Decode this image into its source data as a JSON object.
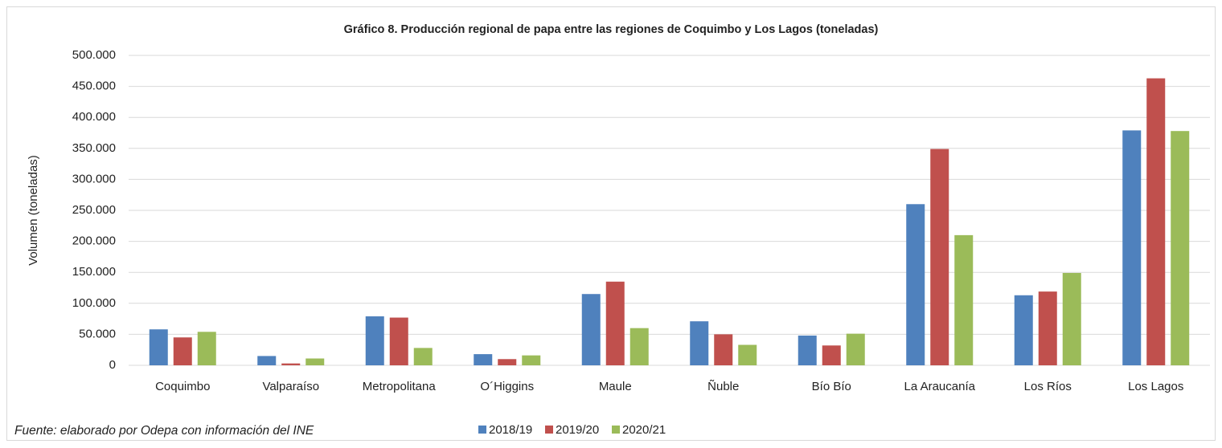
{
  "chart_data": {
    "type": "bar",
    "title": "Gráfico 8. Producción regional de papa entre las regiones de Coquimbo y Los Lagos (toneladas)",
    "y_label": "Volumen (toneladas)",
    "source": "Fuente: elaborado por Odepa con información del INE",
    "categories": [
      "Coquimbo",
      "Valparaíso",
      "Metropolitana",
      "O´Higgins",
      "Maule",
      "Ñuble",
      "Bío Bío",
      "La Araucanía",
      "Los Ríos",
      "Los Lagos"
    ],
    "series": [
      {
        "name": "2018/19",
        "color": "#4f81bd",
        "values": [
          58000,
          15000,
          79000,
          18000,
          115000,
          71000,
          48000,
          260000,
          113000,
          379000
        ]
      },
      {
        "name": "2019/20",
        "color": "#c0504d",
        "values": [
          45000,
          3000,
          77000,
          10000,
          135000,
          50000,
          32000,
          349000,
          119000,
          463000
        ]
      },
      {
        "name": "2020/21",
        "color": "#9bbb59",
        "values": [
          54000,
          11000,
          28000,
          16000,
          60000,
          33000,
          51000,
          210000,
          149000,
          378000
        ]
      }
    ],
    "ylim": [
      0,
      500000
    ],
    "yticks": [
      0,
      {
        "value": 50000,
        "label": "50.000"
      },
      {
        "value": 100000,
        "label": "100.000"
      },
      {
        "value": 150000,
        "label": "150.000"
      },
      {
        "value": 200000,
        "label": "200.000"
      },
      {
        "value": 250000,
        "label": "250.000"
      },
      {
        "value": 300000,
        "label": "300.000"
      },
      {
        "value": 350000,
        "label": "350.000"
      },
      {
        "value": 400000,
        "label": "400.000"
      },
      {
        "value": 450000,
        "label": "450.000"
      },
      {
        "value": 500000,
        "label": "500.000"
      }
    ],
    "grid": true,
    "legend": "bottom"
  }
}
